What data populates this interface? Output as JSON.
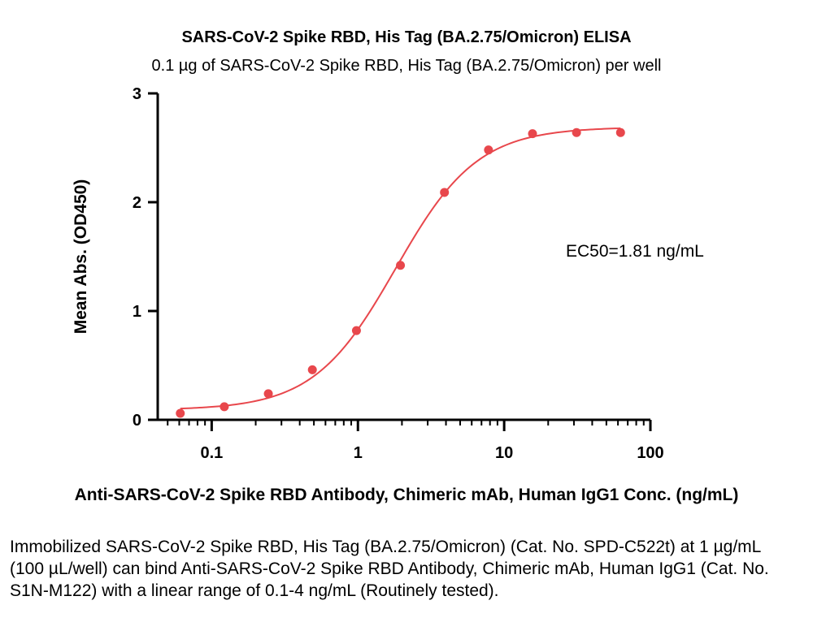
{
  "chart_data": {
    "type": "scatter",
    "title": "SARS-CoV-2 Spike RBD, His Tag (BA.2.75/Omicron) ELISA",
    "subtitle": "0.1 µg of SARS-CoV-2 Spike RBD, His Tag (BA.2.75/Omicron) per well",
    "xlabel": "Anti-SARS-CoV-2 Spike RBD Antibody, Chimeric mAb, Human IgG1 Conc. (ng/mL)",
    "ylabel": "Mean Abs. (OD450)",
    "x_scale": "log",
    "xlim": [
      0.045,
      100
    ],
    "ylim": [
      0,
      3
    ],
    "x_ticks": [
      0.1,
      1,
      10,
      100
    ],
    "x_tick_labels": [
      "0.1",
      "1",
      "10",
      "100"
    ],
    "y_ticks": [
      0,
      1,
      2,
      3
    ],
    "y_tick_labels": [
      "0",
      "1",
      "2",
      "3"
    ],
    "grid": false,
    "points": {
      "x": [
        0.061,
        0.122,
        0.244,
        0.488,
        0.977,
        1.953,
        3.906,
        7.813,
        15.625,
        31.25,
        62.5
      ],
      "y": [
        0.06,
        0.12,
        0.24,
        0.46,
        0.82,
        1.42,
        2.09,
        2.48,
        2.63,
        2.64,
        2.64
      ]
    },
    "fit": {
      "model": "4PL",
      "bottom": 0.09,
      "top": 2.69,
      "ec50": 1.81,
      "hill": 1.55
    },
    "annotation": "EC50=1.81 ng/mL",
    "color": "#e8474c"
  },
  "caption": "Immobilized SARS-CoV-2 Spike RBD, His Tag (BA.2.75/Omicron) (Cat. No. SPD-C522t) at 1 µg/mL (100 µL/well) can bind Anti-SARS-CoV-2 Spike RBD Antibody, Chimeric mAb, Human IgG1 (Cat. No. S1N-M122) with a linear range of 0.1-4 ng/mL (Routinely tested)."
}
